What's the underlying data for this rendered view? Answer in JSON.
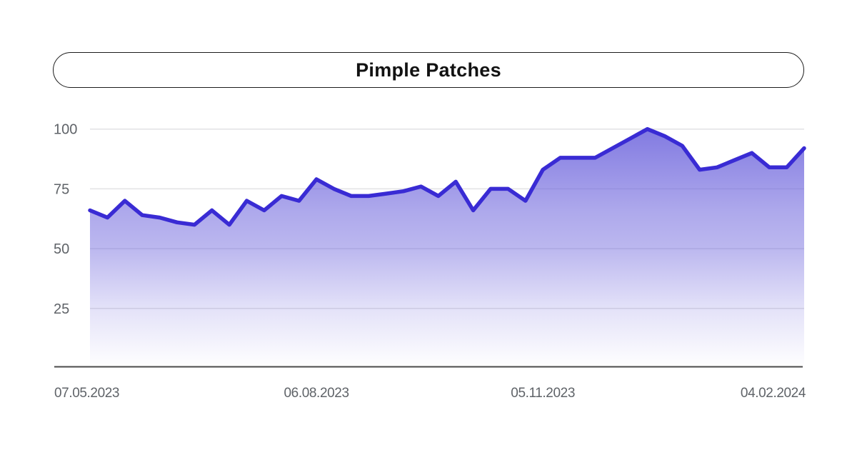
{
  "title": "Pimple Patches",
  "chart_data": {
    "type": "area",
    "title": "Pimple Patches",
    "categories": [
      "07.05.2023",
      "14.05.2023",
      "21.05.2023",
      "28.05.2023",
      "04.06.2023",
      "11.06.2023",
      "18.06.2023",
      "25.06.2023",
      "02.07.2023",
      "09.07.2023",
      "16.07.2023",
      "23.07.2023",
      "30.07.2023",
      "06.08.2023",
      "13.08.2023",
      "20.08.2023",
      "27.08.2023",
      "03.09.2023",
      "10.09.2023",
      "17.09.2023",
      "24.09.2023",
      "01.10.2023",
      "08.10.2023",
      "15.10.2023",
      "22.10.2023",
      "29.10.2023",
      "05.11.2023",
      "12.11.2023",
      "19.11.2023",
      "26.11.2023",
      "03.12.2023",
      "10.12.2023",
      "17.12.2023",
      "24.12.2023",
      "31.12.2023",
      "07.01.2024",
      "14.01.2024",
      "21.01.2024",
      "28.01.2024",
      "04.02.2024",
      "11.02.2024",
      "18.02.2024"
    ],
    "values": [
      66,
      63,
      70,
      64,
      63,
      61,
      60,
      66,
      60,
      70,
      66,
      72,
      70,
      79,
      75,
      72,
      72,
      73,
      74,
      76,
      72,
      78,
      66,
      75,
      75,
      70,
      83,
      88,
      88,
      88,
      92,
      96,
      100,
      97,
      93,
      83,
      84,
      87,
      90,
      84,
      84,
      92
    ],
    "x_tick_labels": [
      "07.05.2023",
      "06.08.2023",
      "05.11.2023",
      "04.02.2024"
    ],
    "x_tick_indices": [
      0,
      13,
      26,
      39
    ],
    "y_tick_labels": [
      "100",
      "75",
      "50",
      "25"
    ],
    "y_tick_values": [
      100,
      75,
      50,
      25
    ],
    "ylim": [
      0,
      100
    ],
    "grid": "horizontal",
    "legend": "none",
    "colors": {
      "line": "#392bd4",
      "fill_base": "#6c63dc",
      "gridline": "#e2e2e4",
      "axis_line": "#4a4a4a",
      "tick_label": "#5f6368",
      "title": "#121212"
    }
  }
}
